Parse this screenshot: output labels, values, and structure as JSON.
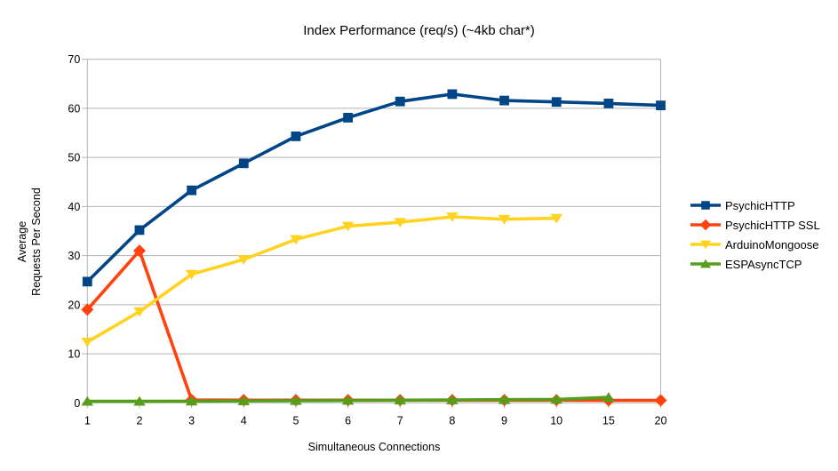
{
  "chart_data": {
    "type": "line",
    "title": "Index Performance (req/s) (~4kb char*)",
    "xlabel": "Simultaneous Connections",
    "ylabel_lines": [
      "Average",
      "Requests Per Second"
    ],
    "categories": [
      "1",
      "2",
      "3",
      "4",
      "5",
      "6",
      "7",
      "8",
      "9",
      "10",
      "15",
      "20"
    ],
    "y_ticks": [
      0,
      10,
      20,
      30,
      40,
      50,
      60,
      70
    ],
    "ylim": [
      0,
      70
    ],
    "grid": "horizontal",
    "legend_position": "right",
    "axis_color": "#b3b3b3",
    "text_color": "#000000",
    "background_color": "#ffffff",
    "series": [
      {
        "name": "PsychicHTTP",
        "color": "#004586",
        "marker": "square",
        "values": [
          24.7,
          35.2,
          43.3,
          48.8,
          54.3,
          58.1,
          61.4,
          62.9,
          61.6,
          61.3,
          61.0,
          60.6
        ]
      },
      {
        "name": "PsychicHTTP SSL",
        "color": "#FF420E",
        "marker": "diamond",
        "values": [
          19.0,
          31.0,
          0.6,
          0.55,
          0.55,
          0.55,
          0.55,
          0.55,
          0.55,
          0.55,
          0.5,
          0.5
        ]
      },
      {
        "name": "ArduinoMongoose",
        "color": "#FFD320",
        "marker": "triangle-down",
        "values": [
          12.4,
          18.6,
          26.2,
          29.2,
          33.3,
          36.0,
          36.8,
          37.9,
          37.4,
          37.6,
          null,
          null
        ]
      },
      {
        "name": "ESPAsyncTCP",
        "color": "#579D1C",
        "marker": "triangle-up",
        "values": [
          0.3,
          0.3,
          0.35,
          0.4,
          0.45,
          0.5,
          0.55,
          0.6,
          0.65,
          0.7,
          1.1,
          null
        ]
      }
    ]
  }
}
